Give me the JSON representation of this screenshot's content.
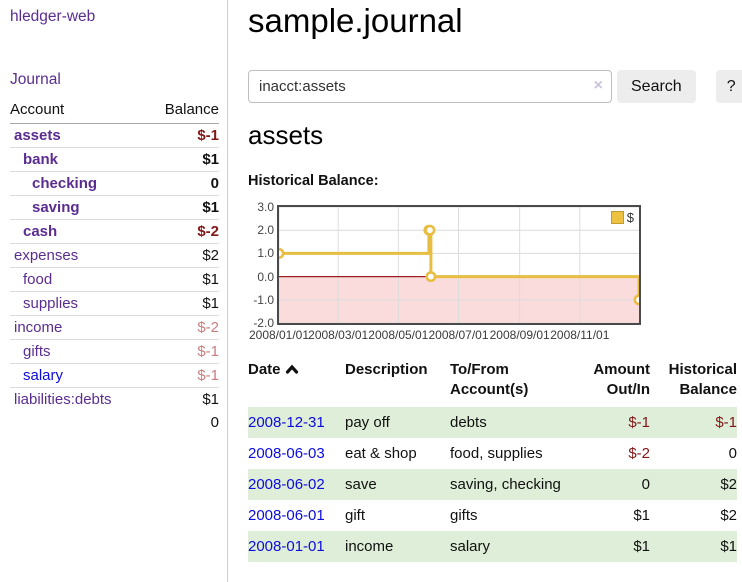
{
  "app": {
    "brand": "hledger-web"
  },
  "sidebar": {
    "journal_link": "Journal",
    "accounts": {
      "account_header": "Account",
      "balance_header": "Balance",
      "rows": [
        {
          "name": "assets",
          "balance": "$-1",
          "indent": 0,
          "emph": true,
          "neg": "strong",
          "unvisited": false
        },
        {
          "name": "bank",
          "balance": "$1",
          "indent": 1,
          "emph": true,
          "neg": "none",
          "unvisited": false
        },
        {
          "name": "checking",
          "balance": "0",
          "indent": 2,
          "emph": true,
          "neg": "none",
          "unvisited": false
        },
        {
          "name": "saving",
          "balance": "$1",
          "indent": 2,
          "emph": true,
          "neg": "none",
          "unvisited": false
        },
        {
          "name": "cash",
          "balance": "$-2",
          "indent": 1,
          "emph": true,
          "neg": "strong",
          "unvisited": false
        },
        {
          "name": "expenses",
          "balance": "$2",
          "indent": 0,
          "emph": false,
          "neg": "none",
          "unvisited": false
        },
        {
          "name": "food",
          "balance": "$1",
          "indent": 1,
          "emph": false,
          "neg": "none",
          "unvisited": false
        },
        {
          "name": "supplies",
          "balance": "$1",
          "indent": 1,
          "emph": false,
          "neg": "none",
          "unvisited": false
        },
        {
          "name": "income",
          "balance": "$-2",
          "indent": 0,
          "emph": false,
          "neg": "soft",
          "unvisited": false
        },
        {
          "name": "gifts",
          "balance": "$-1",
          "indent": 1,
          "emph": false,
          "neg": "soft",
          "unvisited": false
        },
        {
          "name": "salary",
          "balance": "$-1",
          "indent": 1,
          "emph": false,
          "neg": "soft",
          "unvisited": true
        },
        {
          "name": "liabilities:debts",
          "balance": "$1",
          "indent": 0,
          "emph": false,
          "neg": "none",
          "unvisited": false
        }
      ],
      "total": "0"
    }
  },
  "header": {
    "title": "sample.journal"
  },
  "search": {
    "query": "inacct:assets",
    "clear_icon": "×",
    "button_label": "Search",
    "help_label": "?"
  },
  "account_view": {
    "heading": "assets",
    "chart_title": "Historical Balance:"
  },
  "chart_data": {
    "type": "line",
    "step": true,
    "title": "Historical Balance:",
    "series": [
      {
        "name": "$",
        "color": "#e8be42",
        "points": [
          [
            "2008-01-01",
            1.0
          ],
          [
            "2008-06-01",
            2.0
          ],
          [
            "2008-06-02",
            2.0
          ],
          [
            "2008-06-03",
            0.0
          ],
          [
            "2008-12-31",
            -1.0
          ]
        ]
      }
    ],
    "x_range": [
      "2008-01-01",
      "2008-12-31"
    ],
    "ylim": [
      -2.0,
      3.0
    ],
    "y_ticks": [
      "3.0",
      "2.0",
      "1.0",
      "0.0",
      "-1.0",
      "-2.0"
    ],
    "x_ticks": [
      {
        "date": "2008-01-01",
        "label": "2008/01/01"
      },
      {
        "date": "2008-03-01",
        "label": "2008/03/01"
      },
      {
        "date": "2008-05-01",
        "label": "2008/05/01"
      },
      {
        "date": "2008-07-01",
        "label": "2008/07/01"
      },
      {
        "date": "2008-09-01",
        "label": "2008/09/01"
      },
      {
        "date": "2008-11-01",
        "label": "2008/11/01"
      }
    ],
    "grid": true,
    "negative_fill": "#fbdcdc",
    "zero_line_color": "#9c1f26",
    "grid_color": "#dcdcdc",
    "legend_position": "top-right",
    "legend": [
      {
        "label": "$",
        "swatch": "#edc240"
      }
    ]
  },
  "register": {
    "columns": [
      {
        "label": "Date",
        "align": "left",
        "sorted": "asc"
      },
      {
        "label": "Description",
        "align": "left"
      },
      {
        "label": "To/From Account(s)",
        "align": "left"
      },
      {
        "label": "Amount Out/In",
        "align": "right"
      },
      {
        "label": "Historical Balance",
        "align": "right"
      }
    ],
    "rows": [
      {
        "date": "2008-12-31",
        "description": "pay off",
        "accounts": "debts",
        "amount": "$-1",
        "balance": "$-1",
        "amount_neg": true,
        "balance_neg": true
      },
      {
        "date": "2008-06-03",
        "description": "eat & shop",
        "accounts": "food, supplies",
        "amount": "$-2",
        "balance": "0",
        "amount_neg": true,
        "balance_neg": false
      },
      {
        "date": "2008-06-02",
        "description": "save",
        "accounts": "saving, checking",
        "amount": "0",
        "balance": "$2",
        "amount_neg": false,
        "balance_neg": false
      },
      {
        "date": "2008-06-01",
        "description": "gift",
        "accounts": "gifts",
        "amount": "$1",
        "balance": "$2",
        "amount_neg": false,
        "balance_neg": false
      },
      {
        "date": "2008-01-01",
        "description": "income",
        "accounts": "salary",
        "amount": "$1",
        "balance": "$1",
        "amount_neg": false,
        "balance_neg": false
      }
    ]
  },
  "colors": {
    "link_purple": "#5b2d91",
    "link_blue": "#0c0cdb",
    "negative_strong": "#821717",
    "negative_soft": "#c67f7f",
    "row_stripe_green": "#dfeed8",
    "chart_line_gold": "#e8be42",
    "chart_negative_pink": "#fbdcdc"
  }
}
